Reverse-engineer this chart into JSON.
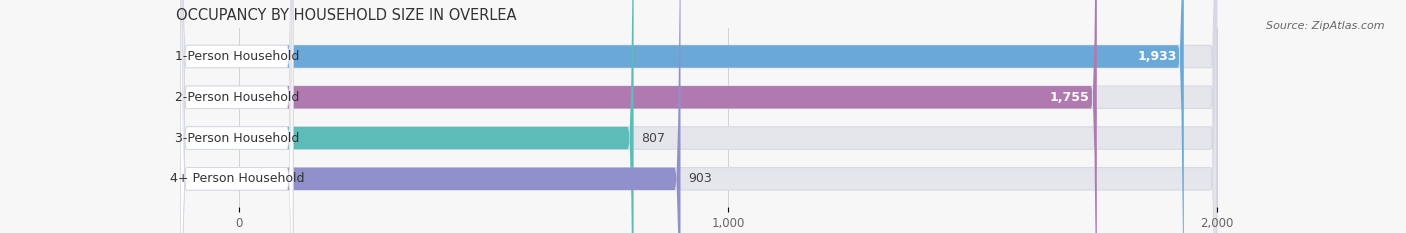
{
  "title": "OCCUPANCY BY HOUSEHOLD SIZE IN OVERLEA",
  "source": "Source: ZipAtlas.com",
  "categories": [
    "1-Person Household",
    "2-Person Household",
    "3-Person Household",
    "4+ Person Household"
  ],
  "values": [
    1933,
    1755,
    807,
    903
  ],
  "bar_colors": [
    "#6aa8d8",
    "#b07ab0",
    "#5bbcb8",
    "#9090cc"
  ],
  "xlim_min": -130,
  "xlim_max": 2100,
  "data_max": 2000,
  "xticks": [
    0,
    1000,
    2000
  ],
  "xticklabels": [
    "0",
    "1,000",
    "2,000"
  ],
  "background_color": "#f7f7f7",
  "bar_bg_color": "#e5e5ec",
  "bar_bg_edge_color": "#d8d8e2",
  "label_bg_color": "#ffffff",
  "title_fontsize": 10.5,
  "label_fontsize": 9,
  "value_fontsize": 9,
  "source_fontsize": 8,
  "bar_height": 0.55,
  "bar_gap": 1.0,
  "rounding_size": 20
}
